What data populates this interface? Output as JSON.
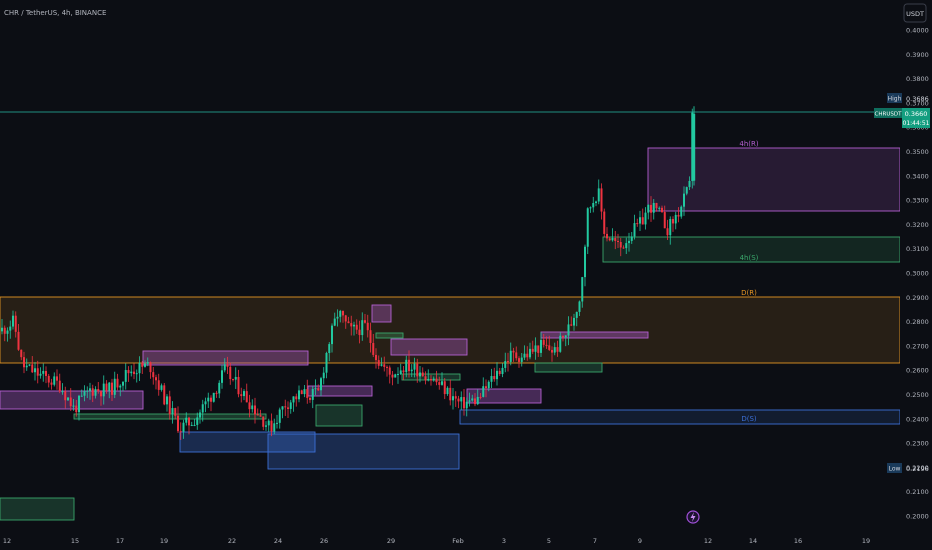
{
  "header": {
    "symbol_title": "CHR / TetherUS, 4h, BINANCE",
    "currency_button": "USDT"
  },
  "price_axis": {
    "ticks": [
      "0.4000",
      "0.3900",
      "0.3800",
      "0.3700",
      "0.3600",
      "0.3500",
      "0.3400",
      "0.3300",
      "0.3200",
      "0.3100",
      "0.3000",
      "0.2900",
      "0.2800",
      "0.2700",
      "0.2600",
      "0.2500",
      "0.2400",
      "0.2300",
      "0.2200",
      "0.2100",
      "0.2000"
    ],
    "high_label": "High",
    "high_value": "0.3686",
    "symbol_tag": "CHRUSDT",
    "last_value": "0.3660",
    "countdown": "01:44:51",
    "low_label": "Low",
    "low_value": "0.2196"
  },
  "time_axis": {
    "ticks": [
      "12",
      "15",
      "17",
      "19",
      "22",
      "24",
      "26",
      "29",
      "Feb",
      "3",
      "5",
      "7",
      "9",
      "12",
      "14",
      "16",
      "19"
    ]
  },
  "zones": [
    {
      "label": "4h(R)",
      "color": "#b45fd1"
    },
    {
      "label": "4h(S)",
      "color": "#3aa66b"
    },
    {
      "label": "D(R)",
      "color": "#e39423"
    },
    {
      "label": "D(S)",
      "color": "#3c6fd6"
    }
  ],
  "icons": {
    "event_marker": "lightning-icon"
  },
  "chart_data": {
    "type": "candlestick",
    "y_range": [
      0.1985,
      0.4045
    ],
    "high": 0.3686,
    "low": 0.2196,
    "last": 0.366
  }
}
